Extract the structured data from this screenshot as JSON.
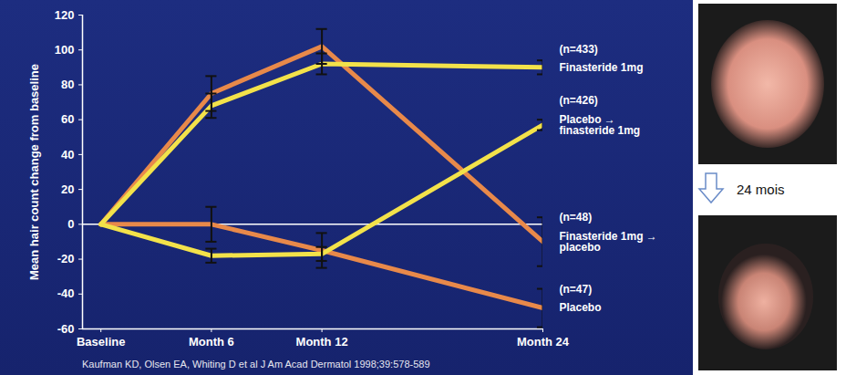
{
  "chart_data": {
    "type": "line",
    "ylabel": "Mean hair count change from baseline",
    "x": [
      0,
      6,
      12,
      24
    ],
    "xlim": [
      -1,
      24
    ],
    "xticks": [
      {
        "value": 0,
        "label": "Baseline"
      },
      {
        "value": 6,
        "label": "Month 6"
      },
      {
        "value": 12,
        "label": "Month 12"
      },
      {
        "value": 24,
        "label": "Month 24"
      }
    ],
    "ylim": [
      -60,
      120
    ],
    "yticks": [
      -60,
      -40,
      -20,
      0,
      20,
      40,
      60,
      80,
      100,
      120
    ],
    "grid": false,
    "series": [
      {
        "name": "Finasteride 1mg → placebo",
        "n_label": "(n=48)",
        "color": "#e8894a",
        "values": [
          0,
          75,
          102,
          -10
        ],
        "errors": [
          null,
          10,
          10,
          14
        ]
      },
      {
        "name": "Placebo",
        "n_label": "(n=47)",
        "color": "#e8894a",
        "values": [
          0,
          0,
          -15,
          -48
        ],
        "errors": [
          null,
          10,
          10,
          11
        ]
      },
      {
        "name": "Finasteride 1mg",
        "n_label": "(n=433)",
        "color": "#f3e24a",
        "values": [
          0,
          68,
          92,
          90
        ],
        "errors": [
          null,
          7,
          6,
          4
        ]
      },
      {
        "name": "Placebo → finasteride 1mg",
        "n_label": "(n=426)",
        "color": "#f3e24a",
        "values": [
          0,
          -18,
          -17,
          57
        ],
        "errors": [
          null,
          4,
          4,
          3
        ]
      }
    ],
    "source": "Kaufman KD, Olsen EA, Whiting D et al J Am Acad Dermatol 1998;39:578-589",
    "annotation": "24 mois"
  }
}
